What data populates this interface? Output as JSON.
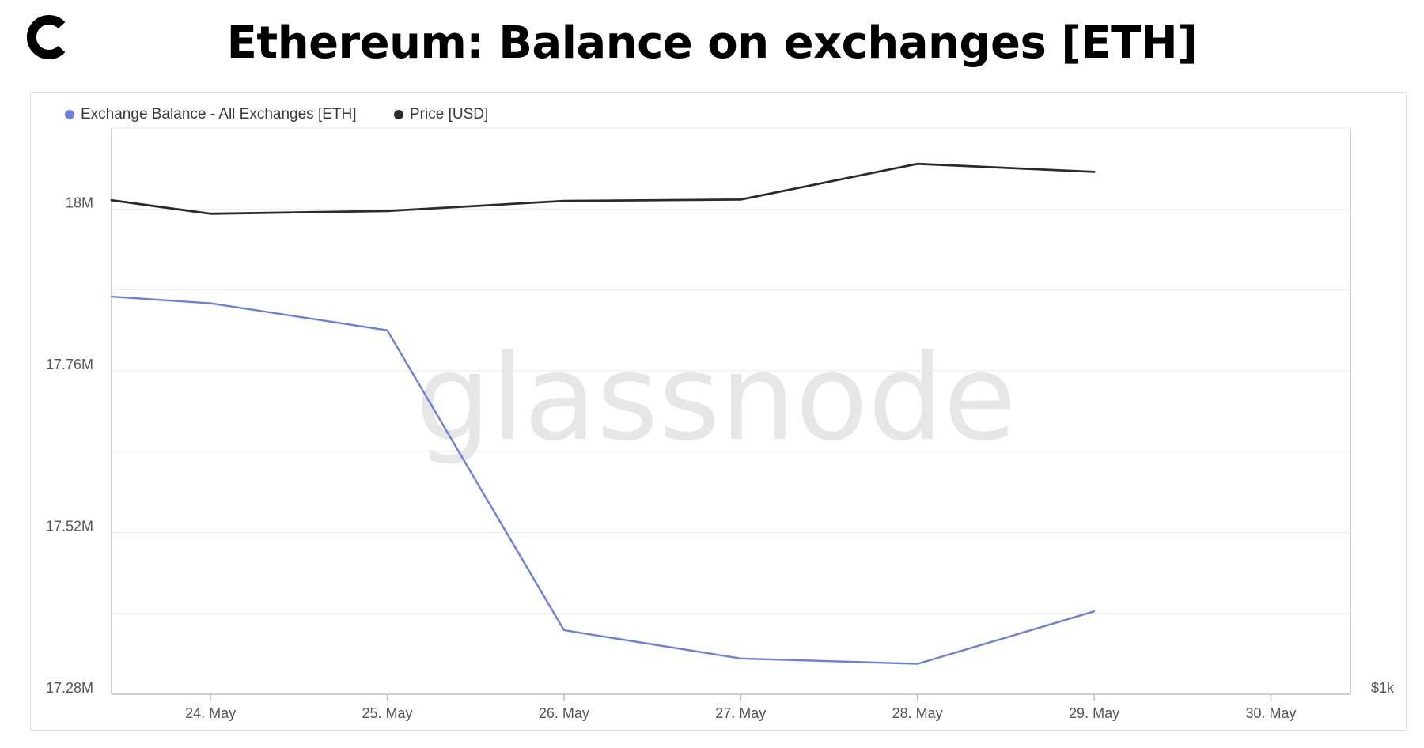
{
  "header": {
    "title": "Ethereum: Balance on exchanges [ETH]",
    "watermark": "glassnode"
  },
  "colors": {
    "balance": "#6b7fdc",
    "price": "#2b2b2b",
    "grid": "#e9e9e9",
    "axis": "#bdbdbd"
  },
  "legend": [
    {
      "label": "Exchange Balance - All Exchanges [ETH]",
      "color": "#6b7fdc"
    },
    {
      "label": "Price [USD]",
      "color": "#2b2b2b"
    }
  ],
  "chart_data": {
    "type": "line",
    "title": "Ethereum: Balance on exchanges [ETH]",
    "x": [
      "23.5 May",
      "24. May",
      "25. May",
      "26. May",
      "27. May",
      "28. May",
      "29. May"
    ],
    "x_ticks": [
      "24. May",
      "25. May",
      "26. May",
      "27. May",
      "28. May",
      "29. May",
      "30. May"
    ],
    "x_tick_values": [
      24,
      25,
      26,
      27,
      28,
      29,
      30
    ],
    "x_values": [
      23.44,
      24,
      25,
      26,
      27,
      28,
      29
    ],
    "xlim": [
      23.44,
      30.45
    ],
    "y_ticks_left": [
      "17.28M",
      "17.52M",
      "17.76M",
      "18M"
    ],
    "y_tick_values_left": [
      17.28,
      17.52,
      17.76,
      18.0
    ],
    "ylim_left": [
      17.28,
      18.12
    ],
    "y_ticks_right": [
      "$1k"
    ],
    "y_tick_values_right": [
      17.28
    ],
    "grid": true,
    "series": [
      {
        "name": "Exchange Balance - All Exchanges [ETH]",
        "axis": "left",
        "unit": "M ETH",
        "values": [
          17.87,
          17.86,
          17.82,
          17.375,
          17.333,
          17.325,
          17.403
        ]
      },
      {
        "name": "Price [USD]",
        "axis": "right",
        "plotted_on_left_scale": true,
        "values": [
          18.013,
          17.993,
          17.997,
          18.012,
          18.014,
          18.067,
          18.055
        ]
      }
    ]
  }
}
